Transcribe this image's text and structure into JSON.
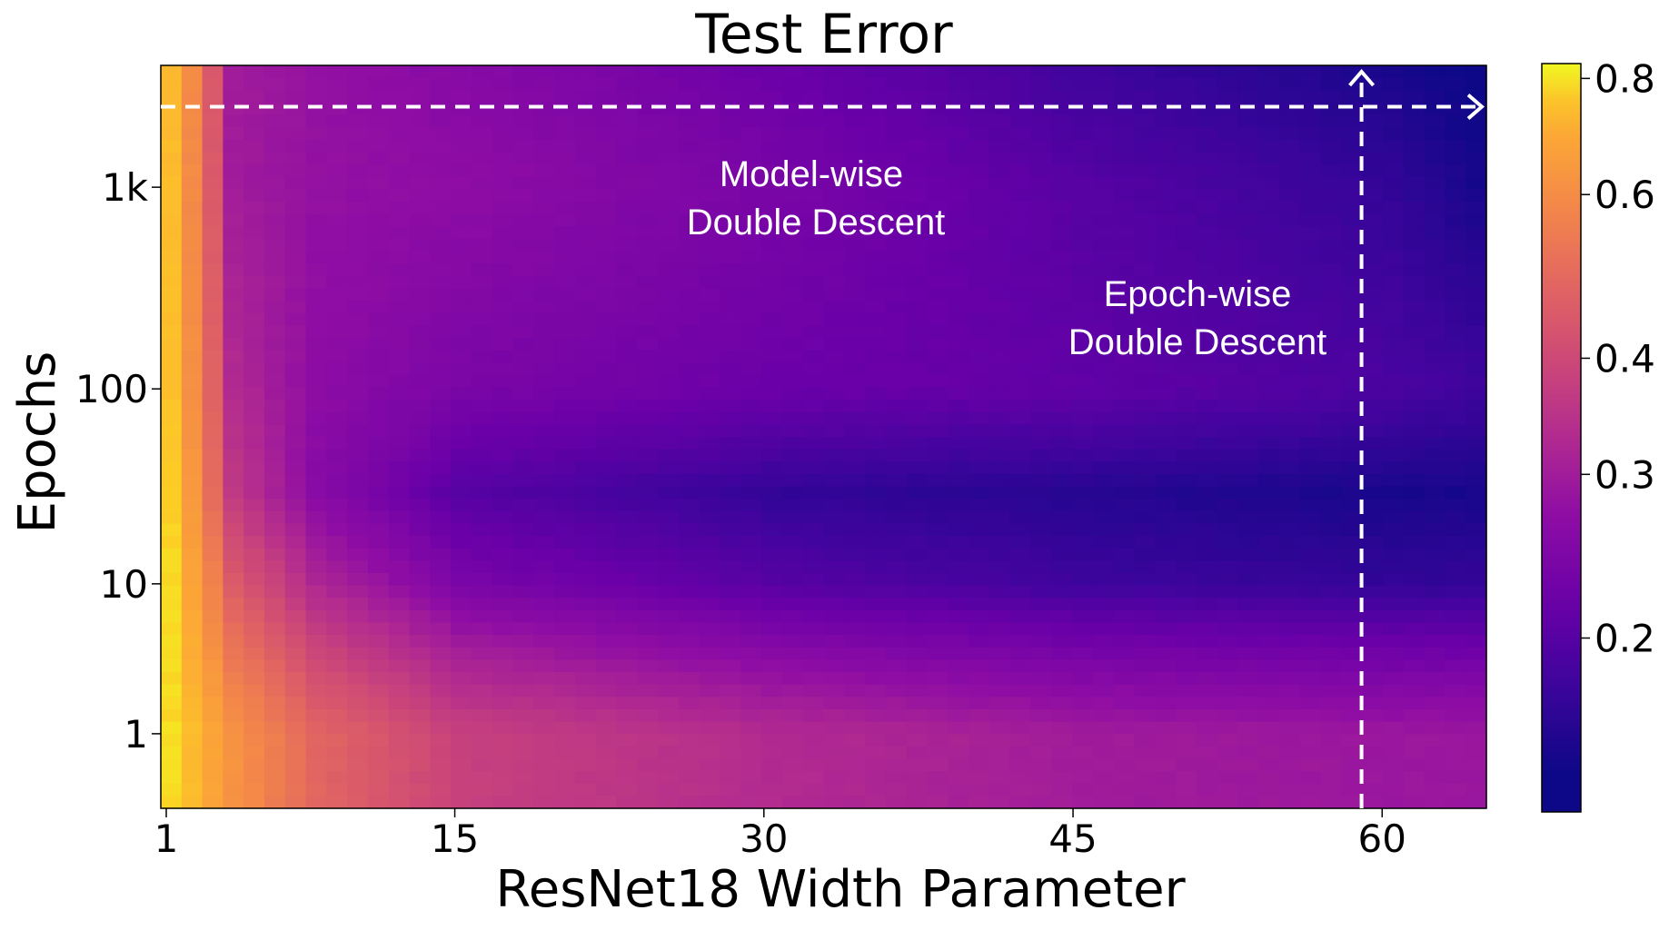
{
  "chart_data": {
    "type": "heatmap",
    "title": "Test Error",
    "xlabel": "ResNet18 Width Parameter",
    "ylabel": "Epochs",
    "x_range": [
      1,
      64
    ],
    "x_ticks": [
      1,
      15,
      30,
      45,
      60
    ],
    "x_tick_labels": [
      "1",
      "15",
      "30",
      "45",
      "60"
    ],
    "y_scale": "log (1 + epochs)",
    "y_range": [
      1,
      4000
    ],
    "y_ticks": [
      1,
      10,
      100,
      1000
    ],
    "y_tick_labels": [
      "1",
      "10",
      "100",
      "1k"
    ],
    "colormap": "plasma",
    "colorbar": {
      "range": [
        0.13,
        0.83
      ],
      "ticks": [
        0.2,
        0.3,
        0.4,
        0.6,
        0.8
      ],
      "tick_labels": [
        "0.2",
        "0.3",
        "0.4",
        "0.6",
        "0.8"
      ],
      "scale": "log"
    },
    "grid": false,
    "annotations": [
      {
        "lines": [
          "Model-wise",
          "Double Descent"
        ],
        "x": 32,
        "y": 1000,
        "arrow": {
          "from": [
            1,
            2500
          ],
          "to": [
            64,
            2500
          ],
          "direction": "right",
          "style": "dashed",
          "color": "#ffffff"
        }
      },
      {
        "lines": [
          "Epoch-wise",
          "Double Descent"
        ],
        "x": 50,
        "y": 300,
        "arrow": {
          "from": [
            59,
            1
          ],
          "to": [
            59,
            4000
          ],
          "direction": "up",
          "style": "dashed",
          "color": "#ffffff"
        }
      }
    ],
    "widths_sample": [
      1,
      4,
      8,
      15,
      30,
      45,
      60,
      64
    ],
    "epochs_sample": [
      1,
      10,
      30,
      100,
      1000,
      4000
    ],
    "test_error_sample": [
      [
        0.8,
        0.62,
        0.48,
        0.38,
        0.33,
        0.3,
        0.29,
        0.29
      ],
      [
        0.8,
        0.45,
        0.32,
        0.24,
        0.2,
        0.18,
        0.17,
        0.17
      ],
      [
        0.78,
        0.36,
        0.26,
        0.2,
        0.17,
        0.16,
        0.15,
        0.15
      ],
      [
        0.75,
        0.33,
        0.27,
        0.24,
        0.22,
        0.21,
        0.19,
        0.18
      ],
      [
        0.74,
        0.3,
        0.28,
        0.27,
        0.24,
        0.2,
        0.17,
        0.15
      ],
      [
        0.74,
        0.3,
        0.28,
        0.26,
        0.22,
        0.18,
        0.15,
        0.14
      ]
    ]
  }
}
